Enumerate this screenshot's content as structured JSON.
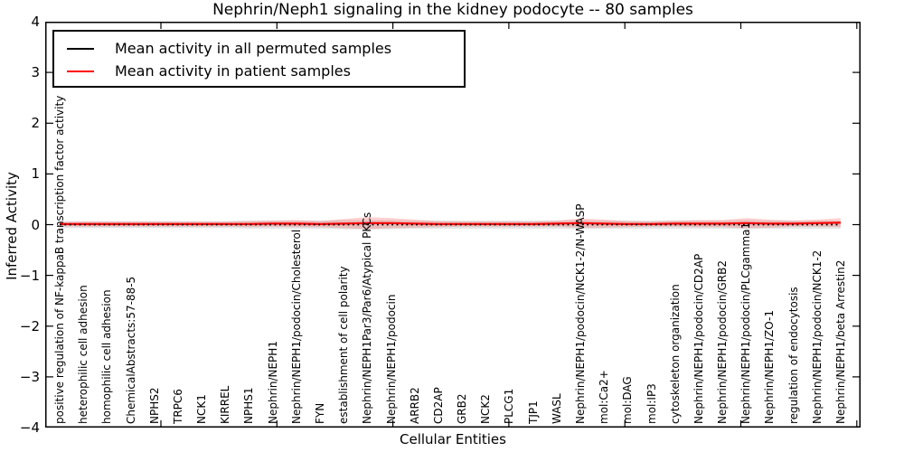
{
  "figure": {
    "title": "Nephrin/Neph1 signaling in the kidney podocyte -- 80 samples",
    "xlabel": "Cellular Entities",
    "ylabel": "Inferred Activity",
    "legend": {
      "entries": [
        {
          "label": "Mean activity in all permuted samples",
          "color": "#000000"
        },
        {
          "label": "Mean activity in patient samples",
          "color": "#ff0000"
        }
      ]
    }
  },
  "chart_data": {
    "type": "line",
    "title": "Nephrin/Neph1 signaling in the kidney podocyte -- 80 samples",
    "xlabel": "Cellular Entities",
    "ylabel": "Inferred Activity",
    "ylim": [
      -4,
      4
    ],
    "yticks": [
      4,
      3,
      2,
      1,
      0,
      -1,
      -2,
      -3,
      -4
    ],
    "grid": false,
    "legend_position": "upper left",
    "categories": [
      "positive regulation of NF-kappaB transcription factor activity",
      "heterophilic cell adhesion",
      "homophilic cell adhesion",
      "ChemicalAbstracts:57-88-5",
      "NPHS2",
      "TRPC6",
      "NCK1",
      "KIRREL",
      "NPHS1",
      "Nephrin/NEPH1",
      "Nephrin/NEPH1/podocin/Cholesterol",
      "FYN",
      "establishment of cell polarity",
      "Nephrin/NEPH1Par3/Par6/Atypical PKCs",
      "Nephrin/NEPH1/podocin",
      "ARRB2",
      "CD2AP",
      "GRB2",
      "NCK2",
      "PLCG1",
      "TJP1",
      "WASL",
      "Nephrin/NEPH1/podocin/NCK1-2/N-WASP",
      "mol:Ca2+",
      "mol:DAG",
      "mol:IP3",
      "cytoskeleton organization",
      "Nephrin/NEPH1/podocin/CD2AP",
      "Nephrin/NEPH1/podocin/GRB2",
      "Nephrin/NEPH1/podocin/PLCgamma1",
      "Nephrin/NEPH1/ZO-1",
      "regulation of endocytosis",
      "Nephrin/NEPH1/podocin/NCK1-2",
      "Nephrin/NEPH1/beta Arrestin2"
    ],
    "series": [
      {
        "name": "Mean activity in all permuted samples",
        "color": "#000000",
        "linestyle": "dotted",
        "values": [
          0,
          0,
          0,
          0,
          0,
          0,
          0,
          0,
          0,
          0,
          0,
          0,
          0,
          0,
          0,
          0,
          0,
          0,
          0,
          0,
          0,
          0,
          0,
          0,
          0,
          0,
          0,
          0,
          0,
          0,
          0,
          0,
          0,
          0
        ]
      },
      {
        "name": "Mean activity in patient samples",
        "color": "#ff0000",
        "linestyle": "solid",
        "values": [
          0.01,
          0.01,
          0.01,
          0.01,
          0.01,
          0.01,
          0.01,
          0.01,
          0.01,
          0.02,
          0.02,
          0.01,
          0.02,
          0.03,
          0.03,
          0.02,
          0.01,
          0.01,
          0.01,
          0.01,
          0.01,
          0.02,
          0.03,
          0.02,
          0.01,
          0.01,
          0.02,
          0.02,
          0.02,
          0.03,
          0.02,
          0.02,
          0.03,
          0.04
        ]
      }
    ],
    "bands": [
      {
        "series": "Mean activity in all permuted samples",
        "color": "rgba(0,0,0,0.10)",
        "half_width": [
          0.07,
          0.07,
          0.07,
          0.07,
          0.07,
          0.07,
          0.07,
          0.07,
          0.08,
          0.08,
          0.08,
          0.08,
          0.09,
          0.09,
          0.09,
          0.08,
          0.08,
          0.08,
          0.08,
          0.08,
          0.08,
          0.08,
          0.09,
          0.08,
          0.08,
          0.08,
          0.08,
          0.08,
          0.08,
          0.09,
          0.08,
          0.08,
          0.08,
          0.08
        ]
      },
      {
        "series": "Mean activity in patient samples",
        "color": "rgba(255,0,0,0.18)",
        "half_width": [
          0.04,
          0.05,
          0.05,
          0.05,
          0.05,
          0.05,
          0.05,
          0.05,
          0.06,
          0.06,
          0.07,
          0.06,
          0.09,
          0.12,
          0.1,
          0.08,
          0.06,
          0.05,
          0.05,
          0.05,
          0.05,
          0.06,
          0.09,
          0.08,
          0.06,
          0.05,
          0.06,
          0.07,
          0.07,
          0.1,
          0.08,
          0.06,
          0.07,
          0.09
        ]
      }
    ]
  }
}
